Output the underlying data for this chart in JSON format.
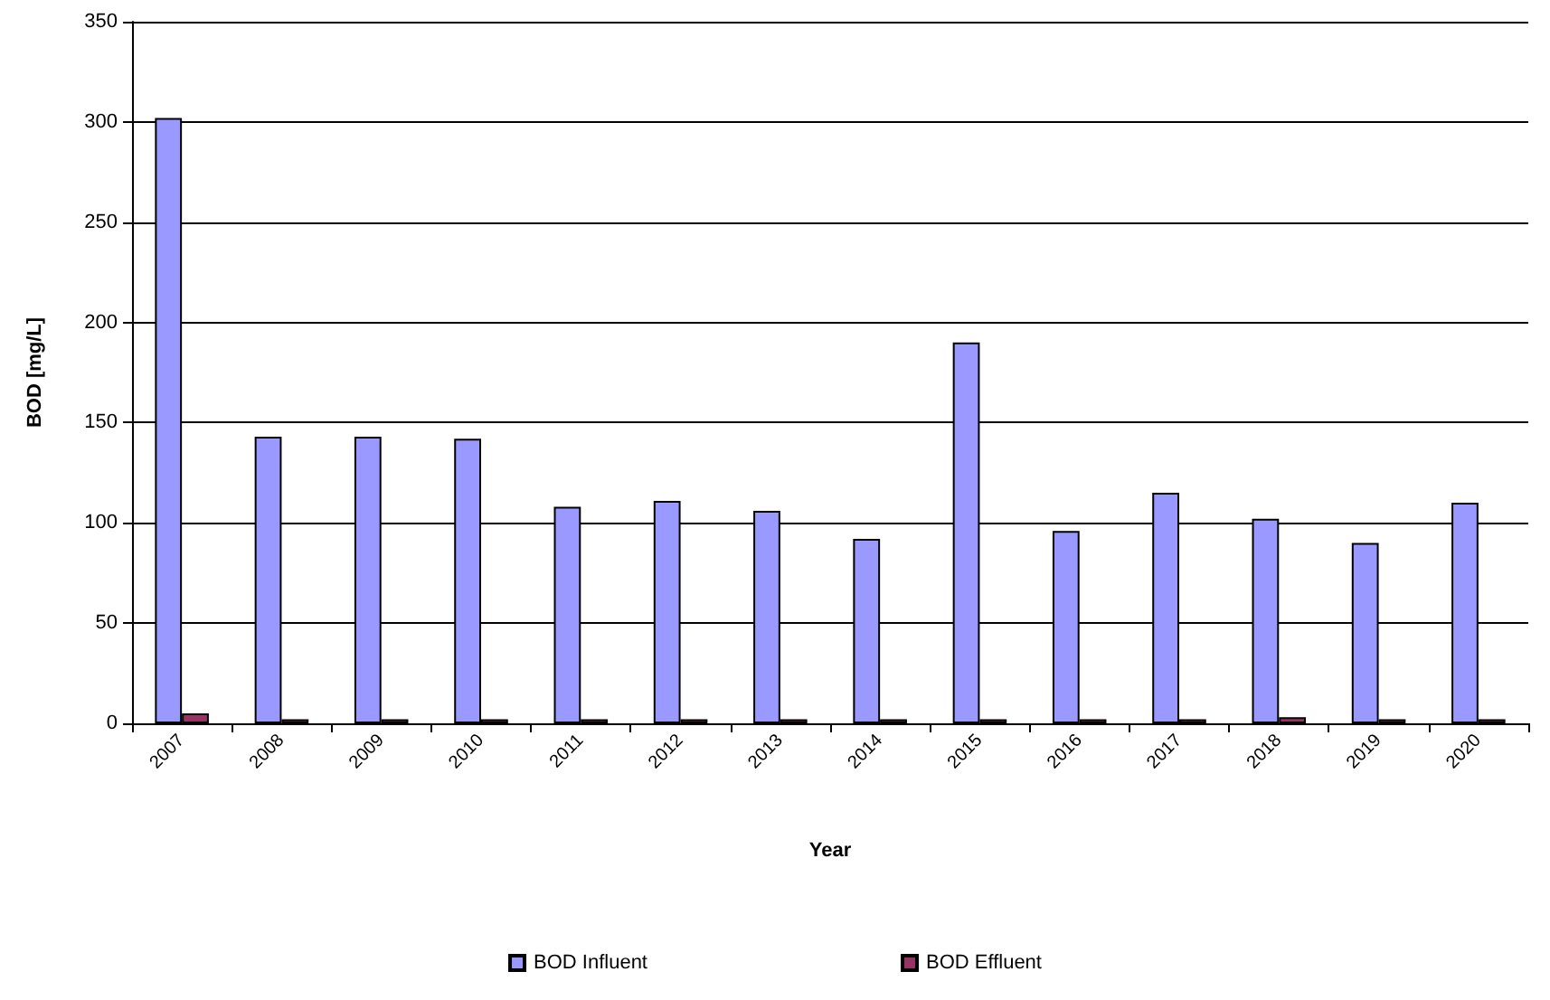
{
  "chart_data": {
    "type": "bar",
    "xlabel": "Year",
    "ylabel": "BOD [mg/L]",
    "categories": [
      "2007",
      "2008",
      "2009",
      "2010",
      "2011",
      "2012",
      "2013",
      "2014",
      "2015",
      "2016",
      "2017",
      "2018",
      "2019",
      "2020"
    ],
    "series": [
      {
        "name": "BOD Influent",
        "color": "#9999ff",
        "values": [
          302,
          143,
          143,
          142,
          108,
          111,
          106,
          92,
          190,
          96,
          115,
          102,
          90,
          110
        ]
      },
      {
        "name": "BOD Effluent",
        "color": "#993366",
        "values": [
          5,
          2,
          2,
          2,
          2,
          2,
          2,
          2,
          2,
          2,
          2,
          3,
          2,
          2
        ]
      }
    ],
    "ylim": [
      0,
      350
    ],
    "yticks": [
      0,
      50,
      100,
      150,
      200,
      250,
      300,
      350
    ],
    "grid": "y",
    "legend": "bottom"
  }
}
